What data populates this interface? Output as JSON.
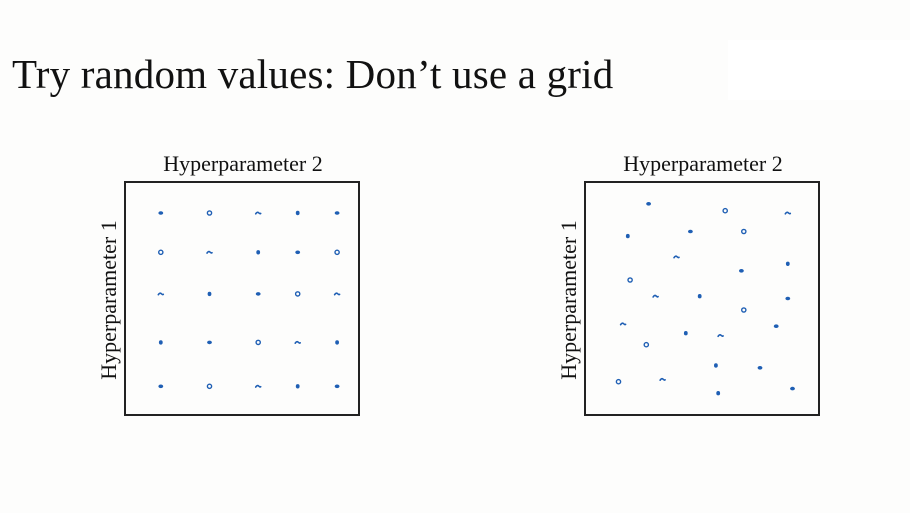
{
  "slide": {
    "title": "Try random values: Don’t use a grid"
  },
  "colors": {
    "point": "#1f5fb4",
    "frame": "#222222",
    "text": "#111111",
    "background": "#fdfdfc"
  },
  "chart_data": [
    {
      "type": "scatter",
      "title": "",
      "xlabel": "Hyperparameter 2",
      "ylabel": "Hyperparameter 1",
      "xlim": [
        0,
        1
      ],
      "ylim": [
        0,
        1
      ],
      "grid": false,
      "series": [
        {
          "points": [
            {
              "x": 0.15,
              "y": 0.87
            },
            {
              "x": 0.36,
              "y": 0.87
            },
            {
              "x": 0.57,
              "y": 0.87
            },
            {
              "x": 0.74,
              "y": 0.87
            },
            {
              "x": 0.91,
              "y": 0.87
            },
            {
              "x": 0.15,
              "y": 0.7
            },
            {
              "x": 0.36,
              "y": 0.7
            },
            {
              "x": 0.57,
              "y": 0.7
            },
            {
              "x": 0.74,
              "y": 0.7
            },
            {
              "x": 0.91,
              "y": 0.7
            },
            {
              "x": 0.15,
              "y": 0.52
            },
            {
              "x": 0.36,
              "y": 0.52
            },
            {
              "x": 0.57,
              "y": 0.52
            },
            {
              "x": 0.74,
              "y": 0.52
            },
            {
              "x": 0.91,
              "y": 0.52
            },
            {
              "x": 0.15,
              "y": 0.31
            },
            {
              "x": 0.36,
              "y": 0.31
            },
            {
              "x": 0.57,
              "y": 0.31
            },
            {
              "x": 0.74,
              "y": 0.31
            },
            {
              "x": 0.91,
              "y": 0.31
            },
            {
              "x": 0.15,
              "y": 0.12
            },
            {
              "x": 0.36,
              "y": 0.12
            },
            {
              "x": 0.57,
              "y": 0.12
            },
            {
              "x": 0.74,
              "y": 0.12
            },
            {
              "x": 0.91,
              "y": 0.12
            }
          ]
        }
      ]
    },
    {
      "type": "scatter",
      "title": "",
      "xlabel": "Hyperparameter 2",
      "ylabel": "Hyperparameter 1",
      "xlim": [
        0,
        1
      ],
      "ylim": [
        0,
        1
      ],
      "grid": false,
      "series": [
        {
          "points": [
            {
              "x": 0.27,
              "y": 0.91
            },
            {
              "x": 0.6,
              "y": 0.88
            },
            {
              "x": 0.87,
              "y": 0.87
            },
            {
              "x": 0.18,
              "y": 0.77
            },
            {
              "x": 0.45,
              "y": 0.79
            },
            {
              "x": 0.68,
              "y": 0.79
            },
            {
              "x": 0.39,
              "y": 0.68
            },
            {
              "x": 0.87,
              "y": 0.65
            },
            {
              "x": 0.67,
              "y": 0.62
            },
            {
              "x": 0.19,
              "y": 0.58
            },
            {
              "x": 0.3,
              "y": 0.51
            },
            {
              "x": 0.49,
              "y": 0.51
            },
            {
              "x": 0.87,
              "y": 0.5
            },
            {
              "x": 0.68,
              "y": 0.45
            },
            {
              "x": 0.16,
              "y": 0.39
            },
            {
              "x": 0.43,
              "y": 0.35
            },
            {
              "x": 0.82,
              "y": 0.38
            },
            {
              "x": 0.26,
              "y": 0.3
            },
            {
              "x": 0.58,
              "y": 0.34
            },
            {
              "x": 0.56,
              "y": 0.21
            },
            {
              "x": 0.75,
              "y": 0.2
            },
            {
              "x": 0.14,
              "y": 0.14
            },
            {
              "x": 0.33,
              "y": 0.15
            },
            {
              "x": 0.57,
              "y": 0.09
            },
            {
              "x": 0.89,
              "y": 0.11
            }
          ]
        }
      ]
    }
  ]
}
